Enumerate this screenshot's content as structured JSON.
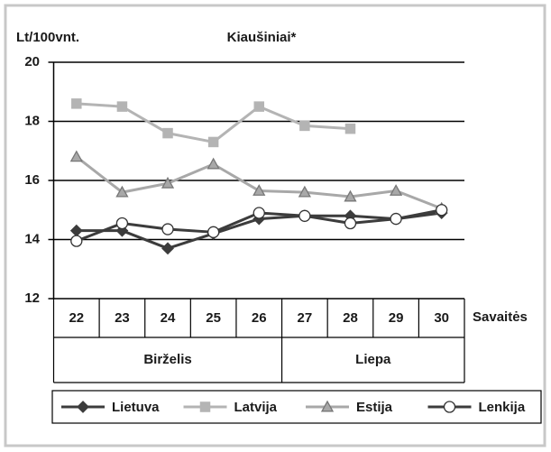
{
  "chart_data": {
    "type": "line",
    "title": "Kiaušiniai*",
    "y_label": "Lt/100vnt.",
    "x_label": "Savaitės",
    "categories": [
      "22",
      "23",
      "24",
      "25",
      "26",
      "27",
      "28",
      "29",
      "30"
    ],
    "groups": [
      {
        "name": "Birželis",
        "count": 5
      },
      {
        "name": "Liepa",
        "count": 4
      }
    ],
    "series": [
      {
        "name": "Lietuva",
        "color": "#3c3c3c",
        "marker": "diamond",
        "values": [
          14.3,
          14.3,
          13.7,
          14.2,
          14.7,
          14.8,
          14.8,
          14.7,
          14.9
        ]
      },
      {
        "name": "Latvija",
        "color": "#b4b4b4",
        "marker": "square",
        "values": [
          18.6,
          18.5,
          17.6,
          17.3,
          18.5,
          17.85,
          17.75,
          null,
          null
        ]
      },
      {
        "name": "Estija",
        "color": "#a8a8a8",
        "marker": "triangle",
        "values": [
          16.8,
          15.6,
          15.9,
          16.55,
          15.65,
          15.6,
          15.45,
          15.65,
          15.05
        ]
      },
      {
        "name": "Lenkija",
        "color": "#3c3c3c",
        "marker": "circle",
        "values": [
          13.95,
          14.55,
          14.35,
          14.25,
          14.9,
          14.8,
          14.55,
          14.7,
          15.0
        ]
      }
    ],
    "ylim": [
      12,
      20
    ],
    "yticks": [
      12,
      14,
      16,
      18,
      20
    ],
    "grid": true,
    "legend": "bottom"
  }
}
